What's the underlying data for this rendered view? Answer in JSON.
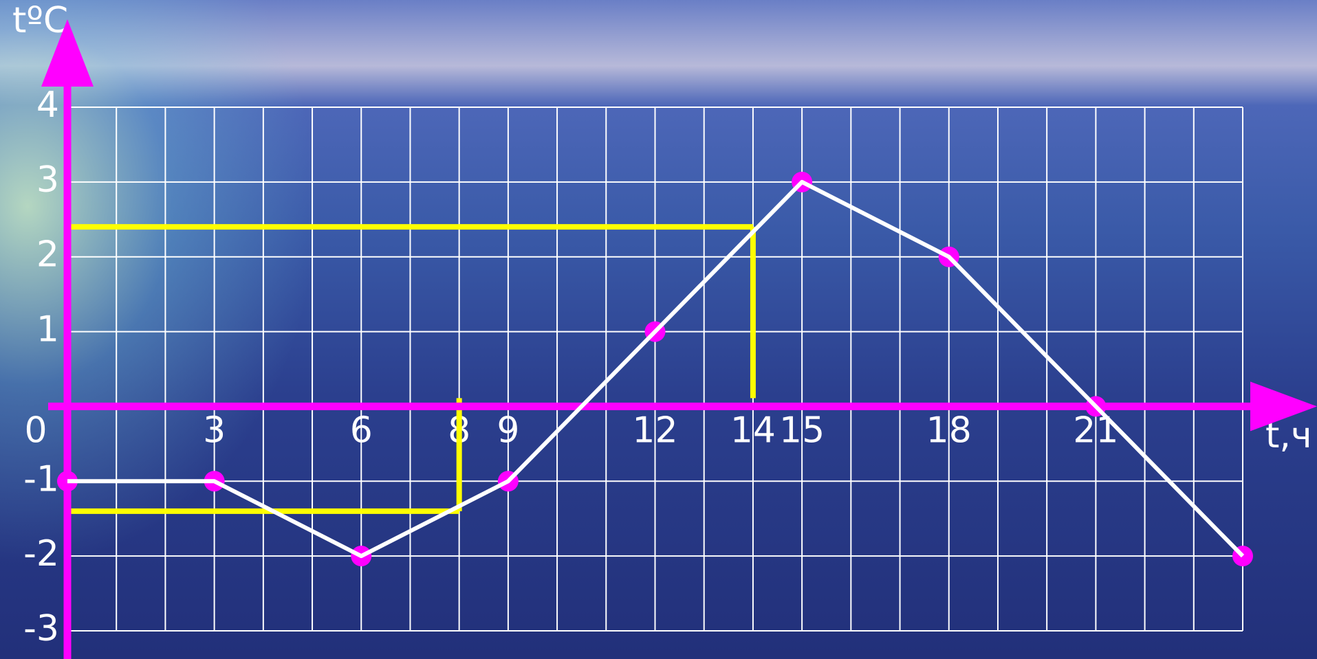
{
  "chart_data": {
    "type": "line",
    "x_label": "t,ч",
    "y_label": "tºC",
    "x": [
      0,
      3,
      6,
      9,
      12,
      15,
      18,
      21,
      24
    ],
    "series": [
      {
        "color": "#ffffff",
        "marker_color": "#ff00ff",
        "values": [
          -1,
          -1,
          -2,
          -1,
          1,
          3,
          2,
          0,
          -2
        ]
      }
    ],
    "guides": {
      "color": "#ffff00",
      "points": [
        {
          "x": 14,
          "y": 2.4
        },
        {
          "x": 8,
          "y": -1.4
        }
      ]
    },
    "axis_color": "#ff00ff",
    "xlim": [
      0,
      24
    ],
    "ylim": [
      -3,
      4
    ],
    "xticks": [
      0,
      3,
      6,
      8,
      9,
      12,
      14,
      15,
      18,
      21
    ],
    "yticks": [
      -3,
      -2,
      -1,
      1,
      2,
      3,
      4
    ],
    "grid": true
  }
}
